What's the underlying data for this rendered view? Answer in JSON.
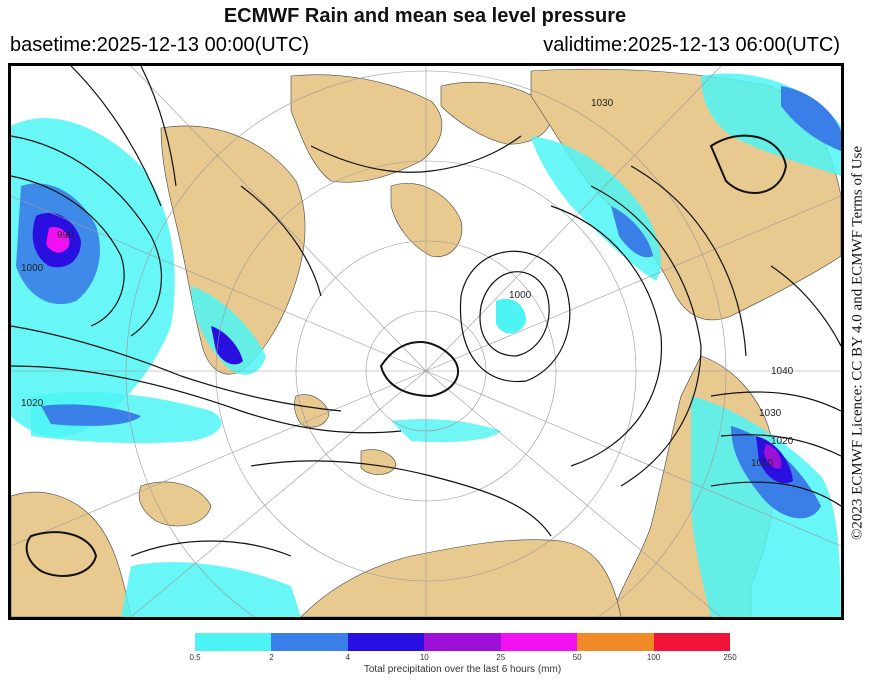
{
  "header": {
    "title": "ECMWF Rain and mean sea level pressure",
    "basetime": "basetime:2025-12-13 00:00(UTC)",
    "validtime": "validtime:2025-12-13 06:00(UTC)"
  },
  "credit": {
    "text": "©2023 ECMWF  Licence: CC BY 4.0 and ECMWF  Terms of Use"
  },
  "map": {
    "land_color": "#e8c98f",
    "ocean_color": "#ffffff",
    "isobar_labels": [
      "1040",
      "1030",
      "1020",
      "1010",
      "1000",
      "990",
      "1020",
      "1000",
      "1030"
    ]
  },
  "legend": {
    "title": "Total precipitation over the last 6 hours (mm)",
    "ticks": [
      "0.5",
      "2",
      "4",
      "10",
      "25",
      "50",
      "100",
      "250"
    ],
    "colors": [
      "#4ef4f4",
      "#3a7ee8",
      "#2a10e0",
      "#9c10d8",
      "#f010f0",
      "#f08a28",
      "#f01438"
    ]
  }
}
